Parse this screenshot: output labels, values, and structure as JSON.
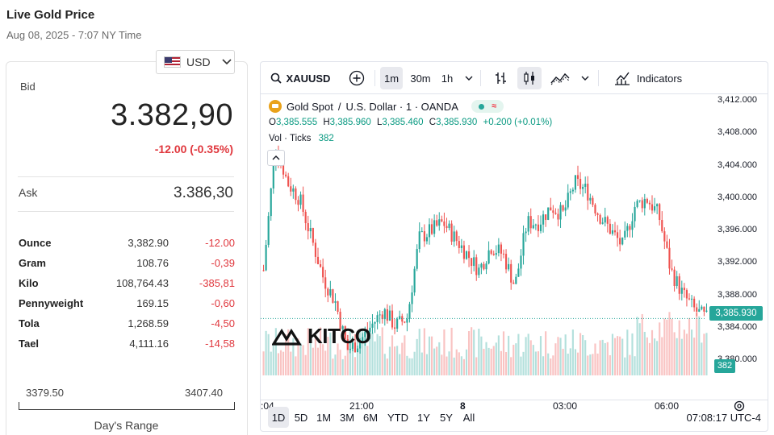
{
  "header": {
    "title": "Live Gold Price",
    "date": "Aug 08, 2025 - 7:07 NY Time"
  },
  "currency": {
    "selected": "USD",
    "flag_icon": "us-flag-icon"
  },
  "quote": {
    "bid_label": "Bid",
    "bid_value": "3.382,90",
    "bid_change": "-12.00 (-0.35%)",
    "ask_label": "Ask",
    "ask_value": "3.386,30"
  },
  "units": [
    {
      "name": "Ounce",
      "price": "3,382.90",
      "change": "-12.00"
    },
    {
      "name": "Gram",
      "price": "108.76",
      "change": "-0,39"
    },
    {
      "name": "Kilo",
      "price": "108,764.43",
      "change": "-385,81"
    },
    {
      "name": "Pennyweight",
      "price": "169.15",
      "change": "-0,60"
    },
    {
      "name": "Tola",
      "price": "1,268.59",
      "change": "-4,50"
    },
    {
      "name": "Tael",
      "price": "4,111.16",
      "change": "-14,58"
    }
  ],
  "days_range": {
    "low": "3379.50",
    "high": "3407.40",
    "label": "Day's Range"
  },
  "chart_widget": {
    "symbol": "XAUUSD",
    "intervals": [
      "1m",
      "30m",
      "1h"
    ],
    "active_interval": "1m",
    "indicators_label": "Indicators",
    "legend": {
      "title": "Gold Spot",
      "sep": "/",
      "title_rest": "U.S. Dollar · 1 · OANDA",
      "ohlc": {
        "o_label": "O",
        "o": "3,385.555",
        "h_label": "H",
        "h": "3,385.960",
        "l_label": "L",
        "l": "3,385.460",
        "c_label": "C",
        "c": "3,385.930",
        "change": "+0.200 (+0.01%)"
      },
      "vol_label": "Vol · Ticks",
      "vol_value": "382"
    },
    "price_axis": [
      "3,412.000",
      "3,408.000",
      "3,404.000",
      "3,400.000",
      "3,396.000",
      "3,392.000",
      "3,388.000",
      "3,384.000",
      "3,380.000"
    ],
    "last_price": "3,385.930",
    "volume_tag": "382",
    "time_axis": [
      ":04",
      "21:00",
      "8",
      "03:00",
      "06:00"
    ],
    "ranges": [
      "1D",
      "5D",
      "1M",
      "3M",
      "6M",
      "YTD",
      "1Y",
      "5Y",
      "All"
    ],
    "active_range": "1D",
    "clock": "07:08:17 UTC-4",
    "watermark": "KITCO",
    "colors": {
      "up": "#26a69a",
      "down": "#ef5350",
      "accent": "#26a69a"
    }
  },
  "chart_data": {
    "type": "candlestick",
    "y_range": [
      3380,
      3414
    ],
    "x_ticks": [
      ":04",
      "21:00",
      "8",
      "03:00",
      "06:00"
    ],
    "approx_close_path": [
      3392,
      3408,
      3403,
      3401,
      3396,
      3391,
      3388,
      3382,
      3383,
      3385,
      3387,
      3385,
      3386,
      3396,
      3397,
      3398,
      3396,
      3394,
      3392,
      3395,
      3394,
      3390,
      3398,
      3398,
      3400,
      3399,
      3403,
      3402,
      3399,
      3397,
      3395,
      3400,
      3401,
      3399,
      3392,
      3389,
      3387,
      3385.93
    ],
    "last_close": 3385.93
  }
}
